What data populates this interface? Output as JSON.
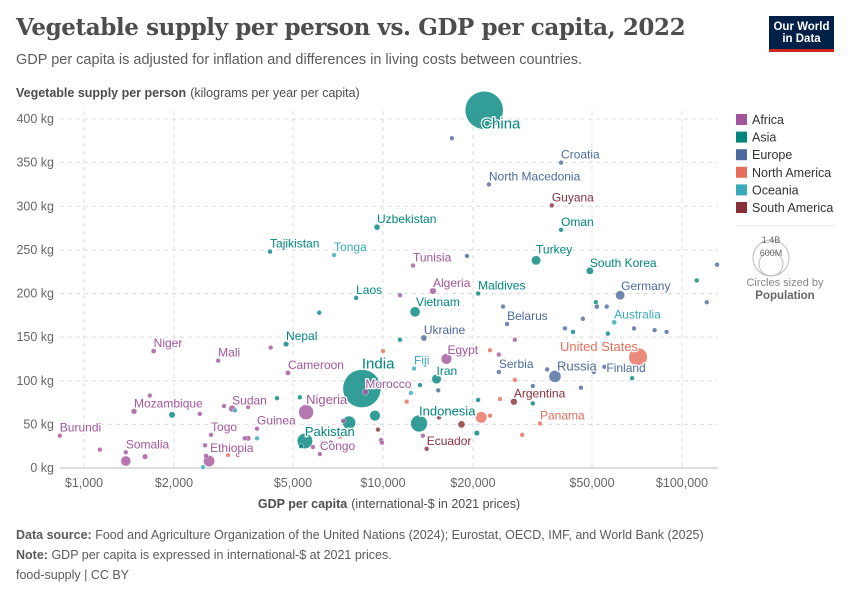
{
  "header": {
    "title": "Vegetable supply per person vs. GDP per capita, 2022",
    "subtitle": "GDP per capita is adjusted for inflation and differences in living costs between countries.",
    "logo": "Our World in Data"
  },
  "footer": {
    "source_label": "Data source:",
    "source": "Food and Agriculture Organization of the United Nations (2024); Eurostat, OECD, IMF, and World Bank (2025)",
    "note_label": "Note:",
    "note": "GDP per capita is expressed in international-$ at 2021 prices.",
    "license": "food-supply | CC BY"
  },
  "chart_data": {
    "type": "scatter",
    "xlabel_bold": "GDP per capita",
    "xlabel_rest": "(international-$ in 2021 prices)",
    "ylabel_bold": "Vegetable supply per person",
    "ylabel_rest": "(kilograms per year per capita)",
    "x_scale": "log",
    "xlim": [
      830,
      132000
    ],
    "ylim": [
      0,
      400
    ],
    "grid": true,
    "x_ticks": [
      {
        "v": 1000,
        "label": "$1,000"
      },
      {
        "v": 2000,
        "label": "$2,000"
      },
      {
        "v": 5000,
        "label": "$5,000"
      },
      {
        "v": 10000,
        "label": "$10,000"
      },
      {
        "v": 20000,
        "label": "$20,000"
      },
      {
        "v": 50000,
        "label": "$50,000"
      },
      {
        "v": 100000,
        "label": "$100,000"
      }
    ],
    "y_ticks": [
      {
        "v": 0,
        "label": "0 kg"
      },
      {
        "v": 50,
        "label": "50 kg"
      },
      {
        "v": 100,
        "label": "100 kg"
      },
      {
        "v": 150,
        "label": "150 kg"
      },
      {
        "v": 200,
        "label": "200 kg"
      },
      {
        "v": 250,
        "label": "250 kg"
      },
      {
        "v": 300,
        "label": "300 kg"
      },
      {
        "v": 350,
        "label": "350 kg"
      },
      {
        "v": 400,
        "label": "400 kg"
      }
    ],
    "legend_position": "right",
    "legend": [
      {
        "name": "Africa",
        "color": "#a2559c"
      },
      {
        "name": "Asia",
        "color": "#00847e"
      },
      {
        "name": "Europe",
        "color": "#4c6a9c"
      },
      {
        "name": "North America",
        "color": "#e56e5a"
      },
      {
        "name": "Oceania",
        "color": "#38aaba"
      },
      {
        "name": "South America",
        "color": "#883039"
      }
    ],
    "size_legend": {
      "large": "1.4B",
      "small": "600M",
      "caption": "Circles sized by",
      "variable": "Population"
    },
    "points": [
      {
        "name": "China",
        "gdp": 21800,
        "veg": 410,
        "region": "Asia",
        "pop": 1420
      },
      {
        "name": "India",
        "gdp": 8500,
        "veg": 91,
        "region": "Asia",
        "pop": 1420
      },
      {
        "name": "Croatia",
        "gdp": 39400,
        "veg": 350,
        "region": "Europe",
        "pop": 4
      },
      {
        "name": "North Macedonia",
        "gdp": 22600,
        "veg": 325,
        "region": "Europe",
        "pop": 2
      },
      {
        "name": "Guyana",
        "gdp": 36700,
        "veg": 301,
        "region": "South America",
        "pop": 1
      },
      {
        "name": "Oman",
        "gdp": 39400,
        "veg": 273,
        "region": "Asia",
        "pop": 5
      },
      {
        "name": "Turkey",
        "gdp": 32500,
        "veg": 238,
        "region": "Asia",
        "pop": 85
      },
      {
        "name": "South Korea",
        "gdp": 49200,
        "veg": 226,
        "region": "Asia",
        "pop": 52
      },
      {
        "name": "Germany",
        "gdp": 62100,
        "veg": 198,
        "region": "Europe",
        "pop": 84
      },
      {
        "name": "Uzbekistan",
        "gdp": 9550,
        "veg": 276,
        "region": "Asia",
        "pop": 36
      },
      {
        "name": "Tajikistan",
        "gdp": 4190,
        "veg": 248,
        "region": "Asia",
        "pop": 10
      },
      {
        "name": "Tonga",
        "gdp": 6860,
        "veg": 244,
        "region": "Oceania",
        "pop": 0.1
      },
      {
        "name": "Tunisia",
        "gdp": 12600,
        "veg": 232,
        "region": "Africa",
        "pop": 12
      },
      {
        "name": "Algeria",
        "gdp": 14700,
        "veg": 203,
        "region": "Africa",
        "pop": 45
      },
      {
        "name": "Maldives",
        "gdp": 20800,
        "veg": 200,
        "region": "Asia",
        "pop": 0.5
      },
      {
        "name": "Laos",
        "gdp": 8130,
        "veg": 195,
        "region": "Asia",
        "pop": 7
      },
      {
        "name": "Vietnam",
        "gdp": 12800,
        "veg": 179,
        "region": "Asia",
        "pop": 100
      },
      {
        "name": "Australia",
        "gdp": 59300,
        "veg": 167,
        "region": "Oceania",
        "pop": 26
      },
      {
        "name": "Belarus",
        "gdp": 26000,
        "veg": 165,
        "region": "Europe",
        "pop": 9
      },
      {
        "name": "Ukraine",
        "gdp": 13700,
        "veg": 149,
        "region": "Europe",
        "pop": 38
      },
      {
        "name": "Nepal",
        "gdp": 4740,
        "veg": 142,
        "region": "Asia",
        "pop": 30
      },
      {
        "name": "Niger",
        "gdp": 1710,
        "veg": 134,
        "region": "Africa",
        "pop": 26
      },
      {
        "name": "Mali",
        "gdp": 2810,
        "veg": 123,
        "region": "Africa",
        "pop": 22
      },
      {
        "name": "Egypt",
        "gdp": 16300,
        "veg": 125,
        "region": "Africa",
        "pop": 110
      },
      {
        "name": "United States",
        "gdp": 71300,
        "veg": 127,
        "region": "North America",
        "pop": 335
      },
      {
        "name": "Fiji",
        "gdp": 12700,
        "veg": 114,
        "region": "Oceania",
        "pop": 1
      },
      {
        "name": "Cameroon",
        "gdp": 4810,
        "veg": 109,
        "region": "Africa",
        "pop": 28
      },
      {
        "name": "Morocco",
        "gdp": 8730,
        "veg": 87,
        "region": "Africa",
        "pop": 37
      },
      {
        "name": "Iran",
        "gdp": 15100,
        "veg": 102,
        "region": "Asia",
        "pop": 89
      },
      {
        "name": "Serbia",
        "gdp": 24400,
        "veg": 110,
        "region": "Europe",
        "pop": 7
      },
      {
        "name": "Russia",
        "gdp": 37600,
        "veg": 105,
        "region": "Europe",
        "pop": 145
      },
      {
        "name": "Finland",
        "gdp": 55000,
        "veg": 116,
        "region": "Europe",
        "pop": 5.5
      },
      {
        "name": "Mozambique",
        "gdp": 1470,
        "veg": 65,
        "region": "Africa",
        "pop": 33
      },
      {
        "name": "Sudan",
        "gdp": 3130,
        "veg": 68,
        "region": "Africa",
        "pop": 48
      },
      {
        "name": "Nigeria",
        "gdp": 5530,
        "veg": 64,
        "region": "Africa",
        "pop": 220
      },
      {
        "name": "Argentina",
        "gdp": 27400,
        "veg": 76,
        "region": "South America",
        "pop": 46
      },
      {
        "name": "Indonesia",
        "gdp": 13200,
        "veg": 51,
        "region": "Asia",
        "pop": 275
      },
      {
        "name": "Guinea",
        "gdp": 3790,
        "veg": 45,
        "region": "Africa",
        "pop": 14
      },
      {
        "name": "Togo",
        "gdp": 2660,
        "veg": 38,
        "region": "Africa",
        "pop": 9
      },
      {
        "name": "Panama",
        "gdp": 33500,
        "veg": 51,
        "region": "North America",
        "pop": 4
      },
      {
        "name": "Burundi",
        "gdp": 830,
        "veg": 37,
        "region": "Africa",
        "pop": 13
      },
      {
        "name": "Pakistan",
        "gdp": 5480,
        "veg": 31,
        "region": "Asia",
        "pop": 235
      },
      {
        "name": "Ecuador",
        "gdp": 14000,
        "veg": 22,
        "region": "South America",
        "pop": 18
      },
      {
        "name": "Somalia",
        "gdp": 1380,
        "veg": 18,
        "region": "Africa",
        "pop": 17
      },
      {
        "name": "Ethiopia",
        "gdp": 2620,
        "veg": 8,
        "region": "Africa",
        "pop": 125
      },
      {
        "name": "Congo",
        "gdp": 6150,
        "veg": 16,
        "region": "Africa",
        "pop": 6
      },
      {
        "gdp": 1130,
        "veg": 21,
        "region": "Africa",
        "pop": 20
      },
      {
        "gdp": 1380,
        "veg": 8,
        "region": "Africa",
        "pop": 100
      },
      {
        "gdp": 1600,
        "veg": 13,
        "region": "Africa",
        "pop": 30
      },
      {
        "gdp": 1660,
        "veg": 83,
        "region": "Africa",
        "pop": 5
      },
      {
        "gdp": 1970,
        "veg": 61,
        "region": "Asia",
        "pop": 40
      },
      {
        "gdp": 2440,
        "veg": 62,
        "region": "Africa",
        "pop": 5
      },
      {
        "gdp": 2540,
        "veg": 26,
        "region": "Africa",
        "pop": 8
      },
      {
        "gdp": 2560,
        "veg": 14,
        "region": "Africa",
        "pop": 10
      },
      {
        "gdp": 2500,
        "veg": 1,
        "region": "Oceania",
        "pop": 10
      },
      {
        "gdp": 3030,
        "veg": 15,
        "region": "North America",
        "pop": 10
      },
      {
        "gdp": 3270,
        "veg": 15,
        "region": "Africa",
        "pop": 5
      },
      {
        "gdp": 3200,
        "veg": 66,
        "region": "Oceania",
        "pop": 1
      },
      {
        "gdp": 2940,
        "veg": 71,
        "region": "Africa",
        "pop": 5
      },
      {
        "gdp": 3540,
        "veg": 70,
        "region": "Africa",
        "pop": 5
      },
      {
        "gdp": 3540,
        "veg": 34,
        "region": "Africa",
        "pop": 30
      },
      {
        "gdp": 3450,
        "veg": 34,
        "region": "Africa",
        "pop": 5
      },
      {
        "gdp": 3790,
        "veg": 34,
        "region": "Oceania",
        "pop": 1
      },
      {
        "gdp": 4210,
        "veg": 138,
        "region": "Africa",
        "pop": 5
      },
      {
        "gdp": 4420,
        "veg": 80,
        "region": "Asia",
        "pop": 10
      },
      {
        "gdp": 5270,
        "veg": 81,
        "region": "Asia",
        "pop": 20
      },
      {
        "gdp": 5320,
        "veg": 25,
        "region": "Asia",
        "pop": 10
      },
      {
        "gdp": 6020,
        "veg": 79,
        "region": "Africa",
        "pop": 5
      },
      {
        "gdp": 5830,
        "veg": 24,
        "region": "Africa",
        "pop": 5
      },
      {
        "gdp": 6260,
        "veg": 29,
        "region": "Africa",
        "pop": 10
      },
      {
        "gdp": 6400,
        "veg": 29,
        "region": "Asia",
        "pop": 5
      },
      {
        "gdp": 6700,
        "veg": 29,
        "region": "Africa",
        "pop": 15
      },
      {
        "gdp": 7180,
        "veg": 36,
        "region": "North America",
        "pop": 5
      },
      {
        "gdp": 7360,
        "veg": 54,
        "region": "Africa",
        "pop": 5
      },
      {
        "gdp": 7700,
        "veg": 52,
        "region": "Asia",
        "pop": 170
      },
      {
        "gdp": 9400,
        "veg": 60,
        "region": "Asia",
        "pop": 110
      },
      {
        "gdp": 9620,
        "veg": 44,
        "region": "South America",
        "pop": 5
      },
      {
        "gdp": 9850,
        "veg": 32,
        "region": "Africa",
        "pop": 5
      },
      {
        "gdp": 9920,
        "veg": 29,
        "region": "Africa",
        "pop": 5
      },
      {
        "gdp": 6120,
        "veg": 178,
        "region": "Asia",
        "pop": 5
      },
      {
        "gdp": 11400,
        "veg": 198,
        "region": "Africa",
        "pop": 5
      },
      {
        "gdp": 11400,
        "veg": 147,
        "region": "Asia",
        "pop": 5
      },
      {
        "gdp": 10000,
        "veg": 134,
        "region": "North America",
        "pop": 5
      },
      {
        "gdp": 12400,
        "veg": 86,
        "region": "Oceania",
        "pop": 1
      },
      {
        "gdp": 12000,
        "veg": 76,
        "region": "North America",
        "pop": 5
      },
      {
        "gdp": 13300,
        "veg": 95,
        "region": "Asia",
        "pop": 10
      },
      {
        "gdp": 15300,
        "veg": 89,
        "region": "Europe",
        "pop": 5
      },
      {
        "gdp": 15400,
        "veg": 58,
        "region": "South America",
        "pop": 10
      },
      {
        "gdp": 13600,
        "veg": 37,
        "region": "Africa",
        "pop": 20
      },
      {
        "gdp": 18300,
        "veg": 50,
        "region": "South America",
        "pop": 50
      },
      {
        "gdp": 21300,
        "veg": 58,
        "region": "North America",
        "pop": 130
      },
      {
        "gdp": 22800,
        "veg": 60,
        "region": "North America",
        "pop": 3
      },
      {
        "gdp": 20600,
        "veg": 40,
        "region": "Asia",
        "pop": 30
      },
      {
        "gdp": 20800,
        "veg": 78,
        "region": "Asia",
        "pop": 5
      },
      {
        "gdp": 22800,
        "veg": 135,
        "region": "North America",
        "pop": 5
      },
      {
        "gdp": 24400,
        "veg": 130,
        "region": "Africa",
        "pop": 5
      },
      {
        "gdp": 25200,
        "veg": 185,
        "region": "Europe",
        "pop": 5
      },
      {
        "gdp": 27600,
        "veg": 147,
        "region": "Africa",
        "pop": 3
      },
      {
        "gdp": 27600,
        "veg": 101,
        "region": "North America",
        "pop": 3
      },
      {
        "gdp": 24600,
        "veg": 79,
        "region": "North America",
        "pop": 3
      },
      {
        "gdp": 29200,
        "veg": 38,
        "region": "North America",
        "pop": 3
      },
      {
        "gdp": 31700,
        "veg": 94,
        "region": "Europe",
        "pop": 5
      },
      {
        "gdp": 31700,
        "veg": 74,
        "region": "Asia",
        "pop": 10
      },
      {
        "gdp": 35400,
        "veg": 113,
        "region": "Europe",
        "pop": 5
      },
      {
        "gdp": 40300,
        "veg": 119,
        "region": "Europe",
        "pop": 5
      },
      {
        "gdp": 40600,
        "veg": 160,
        "region": "Europe",
        "pop": 5
      },
      {
        "gdp": 43200,
        "veg": 156,
        "region": "Asia",
        "pop": 5
      },
      {
        "gdp": 46600,
        "veg": 171,
        "region": "Europe",
        "pop": 5
      },
      {
        "gdp": 45900,
        "veg": 92,
        "region": "Europe",
        "pop": 20
      },
      {
        "gdp": 50700,
        "veg": 110,
        "region": "Europe",
        "pop": 20
      },
      {
        "gdp": 51500,
        "veg": 190,
        "region": "Asia",
        "pop": 5
      },
      {
        "gdp": 51900,
        "veg": 185,
        "region": "Europe",
        "pop": 25
      },
      {
        "gdp": 56000,
        "veg": 185,
        "region": "Europe",
        "pop": 5
      },
      {
        "gdp": 56500,
        "veg": 154,
        "region": "Asia",
        "pop": 5
      },
      {
        "gdp": 68100,
        "veg": 103,
        "region": "Asia",
        "pop": 5
      },
      {
        "gdp": 69100,
        "veg": 160,
        "region": "Europe",
        "pop": 5
      },
      {
        "gdp": 81000,
        "veg": 158,
        "region": "Europe",
        "pop": 5
      },
      {
        "gdp": 88800,
        "veg": 156,
        "region": "Europe",
        "pop": 5
      },
      {
        "gdp": 121000,
        "veg": 190,
        "region": "Europe",
        "pop": 5
      },
      {
        "gdp": 17000,
        "veg": 378,
        "region": "Europe",
        "pop": 3
      },
      {
        "gdp": 19100,
        "veg": 243,
        "region": "Europe",
        "pop": 3
      },
      {
        "gdp": 112000,
        "veg": 215,
        "region": "Asia",
        "pop": 5
      },
      {
        "gdp": 131000,
        "veg": 233,
        "region": "Europe",
        "pop": 3
      }
    ]
  }
}
